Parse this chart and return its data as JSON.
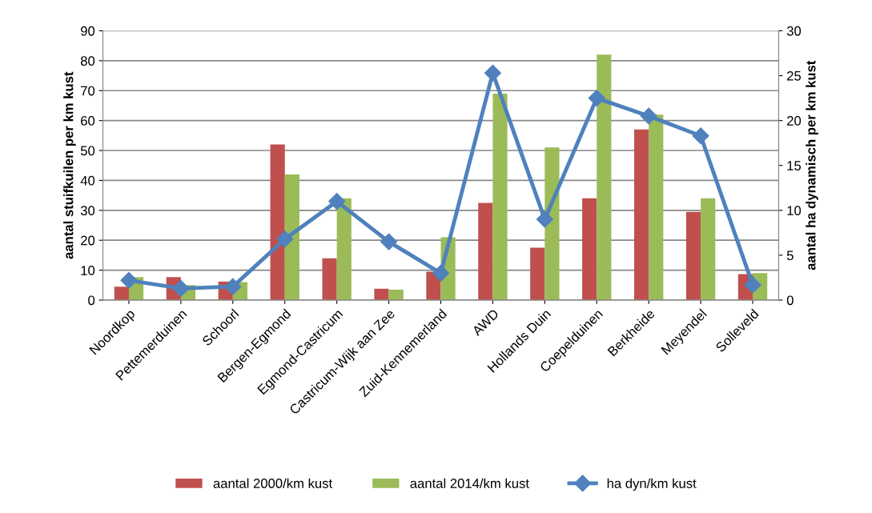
{
  "chart_data": {
    "type": "bar",
    "categories": [
      "Noordkop",
      "Pettemerduinen",
      "Schoorl",
      "Bergen-Egmond",
      "Egmond-Castricum",
      "Castricum-Wijk aan Zee",
      "Zuid-Kennemerland",
      "AWD",
      "Hollands Duin",
      "Coepelduinen",
      "Berkheide",
      "Meyendel",
      "Solleveld"
    ],
    "ylabel": "aantal stuifkuilen per km kust",
    "y2label": "aantal ha dynamisch per km kust",
    "ylim": [
      0,
      90
    ],
    "yticks": [
      0,
      10,
      20,
      30,
      40,
      50,
      60,
      70,
      80,
      90
    ],
    "y2lim": [
      0,
      30
    ],
    "y2ticks": [
      0,
      5,
      10,
      15,
      20,
      25,
      30
    ],
    "grid": "y",
    "legend": "bottom",
    "series": [
      {
        "name": "aantal 2000/km kust",
        "color": "#c0504d",
        "values": [
          4.5,
          7.7,
          6.2,
          52,
          14,
          3.8,
          9.5,
          32.5,
          17.5,
          34,
          57,
          29.5,
          8.7
        ]
      },
      {
        "name": "aantal 2014/km kust",
        "color": "#9bbb59",
        "values": [
          7.7,
          5,
          6,
          42,
          34,
          3.5,
          21,
          69,
          51,
          82,
          62,
          34,
          9
        ]
      },
      {
        "name": "ha dyn/km kust",
        "type": "line",
        "axis": "y2",
        "color": "#4f81bd",
        "marker": "diamond",
        "values": [
          2.2,
          1.3,
          1.5,
          6.8,
          11,
          6.5,
          3,
          25.3,
          9,
          22.5,
          20.5,
          18.3,
          1.7
        ]
      }
    ]
  }
}
